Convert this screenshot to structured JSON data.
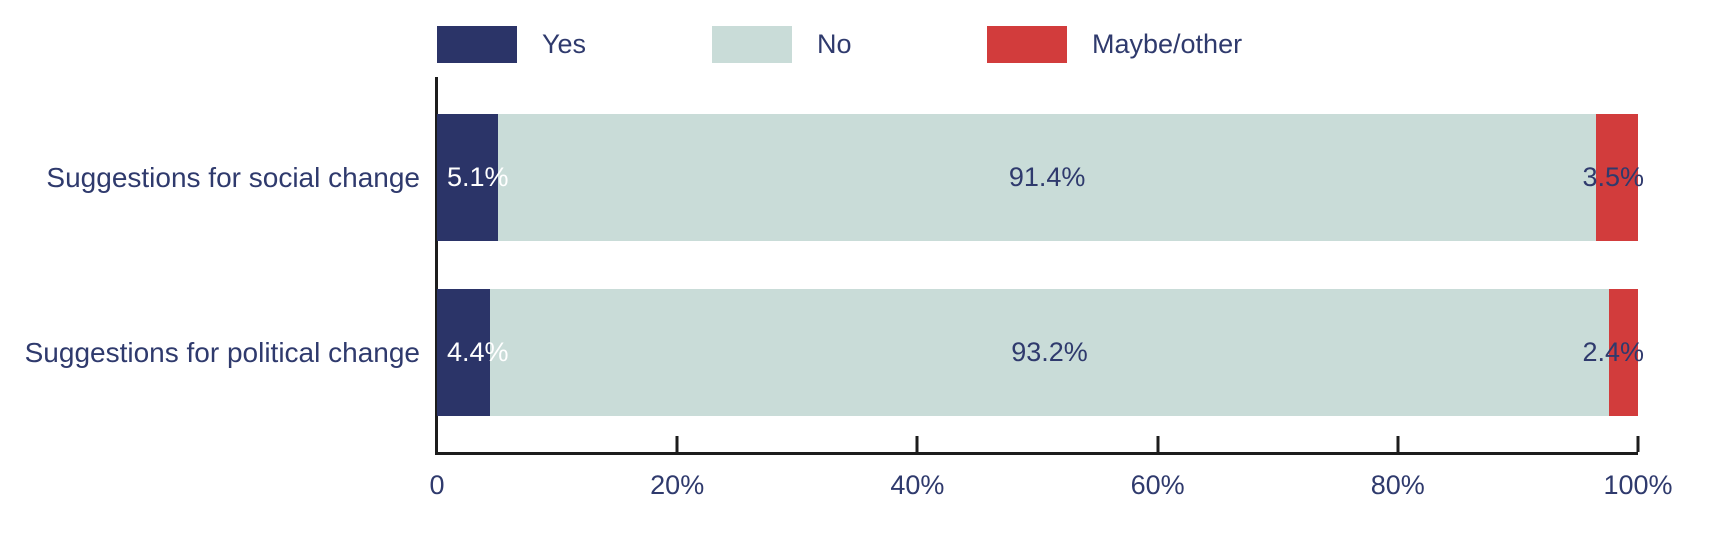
{
  "colors": {
    "yes": "#2b3468",
    "no": "#c9dcd8",
    "maybe_other": "#d23c3c",
    "axis": "#1c1c1c",
    "text": "#2f3a6d",
    "label_on_dark": "#ffffff"
  },
  "chart_data": {
    "type": "bar",
    "variant": "horizontal-stacked",
    "title": "",
    "xlabel": "",
    "ylabel": "",
    "xlim": [
      0,
      100
    ],
    "grid": false,
    "legend_position": "top",
    "categories": [
      "Suggestions for social change",
      "Suggestions for political change"
    ],
    "series": [
      {
        "name": "Yes",
        "color": "#2b3468",
        "values": [
          5.1,
          4.4
        ],
        "labels": [
          "5.1%",
          "4.4%"
        ]
      },
      {
        "name": "No",
        "color": "#c9dcd8",
        "values": [
          91.4,
          93.2
        ],
        "labels": [
          "91.4%",
          "93.2%"
        ]
      },
      {
        "name": "Maybe/other",
        "color": "#d23c3c",
        "values": [
          3.5,
          2.4
        ],
        "labels": [
          "3.5%",
          "2.4%"
        ]
      }
    ],
    "x_ticks": [
      "0",
      "20%",
      "40%",
      "60%",
      "80%",
      "100%"
    ],
    "x_tick_values": [
      0,
      20,
      40,
      60,
      80,
      100
    ]
  }
}
